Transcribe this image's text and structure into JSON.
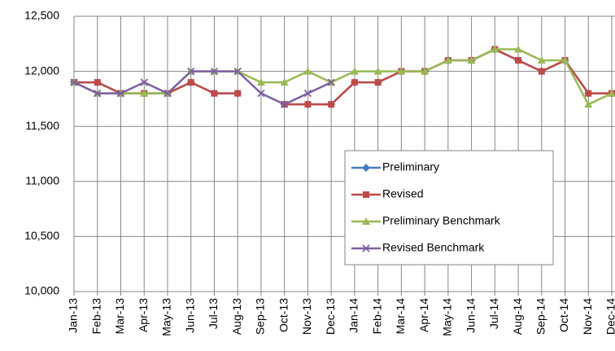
{
  "chart_data": {
    "type": "line",
    "categories": [
      "Jan-13",
      "Feb-13",
      "Mar-13",
      "Apr-13",
      "May-13",
      "Jun-13",
      "Jul-13",
      "Aug-13",
      "Sep-13",
      "Oct-13",
      "Nov-13",
      "Dec-13",
      "Jan-14",
      "Feb-14",
      "Mar-14",
      "Apr-14",
      "May-14",
      "Jun-14",
      "Jul-14",
      "Aug-14",
      "Sep-14",
      "Oct-14",
      "Nov-14",
      "Dec-14"
    ],
    "series": [
      {
        "name": "Preliminary",
        "color": "#4a7ebb",
        "marker": "diamond",
        "values": [
          11900,
          11900,
          11800,
          11800,
          11800,
          11900,
          11800,
          11800,
          null,
          11700,
          11700,
          11700,
          11900,
          11900,
          12000,
          12000,
          12100,
          12100,
          12200,
          12100,
          12000,
          12100,
          11800,
          11800
        ]
      },
      {
        "name": "Revised",
        "color": "#be4b48",
        "marker": "square",
        "values": [
          11900,
          11900,
          11800,
          11800,
          11800,
          11900,
          11800,
          11800,
          null,
          11700,
          11700,
          11700,
          11900,
          11900,
          12000,
          12000,
          12100,
          12100,
          12200,
          12100,
          12000,
          12100,
          11800,
          11800
        ]
      },
      {
        "name": "Preliminary Benchmark",
        "color": "#98b954",
        "marker": "triangle",
        "values": [
          11900,
          11800,
          11800,
          11800,
          11800,
          12000,
          12000,
          12000,
          11900,
          11900,
          12000,
          11900,
          12000,
          12000,
          12000,
          12000,
          12100,
          12100,
          12200,
          12200,
          12100,
          12100,
          11700,
          11800
        ]
      },
      {
        "name": "Revised Benchmark",
        "color": "#7d60a0",
        "marker": "x",
        "values": [
          11900,
          11800,
          11800,
          11900,
          11800,
          12000,
          12000,
          12000,
          11800,
          11700,
          11800,
          11900,
          null,
          null,
          null,
          null,
          null,
          null,
          null,
          null,
          null,
          null,
          null,
          null
        ]
      }
    ],
    "ylim": [
      10000,
      12500
    ],
    "yticks": [
      {
        "value": 10000,
        "label": "10,000"
      },
      {
        "value": 10500,
        "label": "10,500"
      },
      {
        "value": 11000,
        "label": "11,000"
      },
      {
        "value": 11500,
        "label": "11,500"
      },
      {
        "value": 12000,
        "label": "12,000"
      },
      {
        "value": 12500,
        "label": "12,500"
      }
    ],
    "grid": true,
    "legend": "lower-right"
  }
}
